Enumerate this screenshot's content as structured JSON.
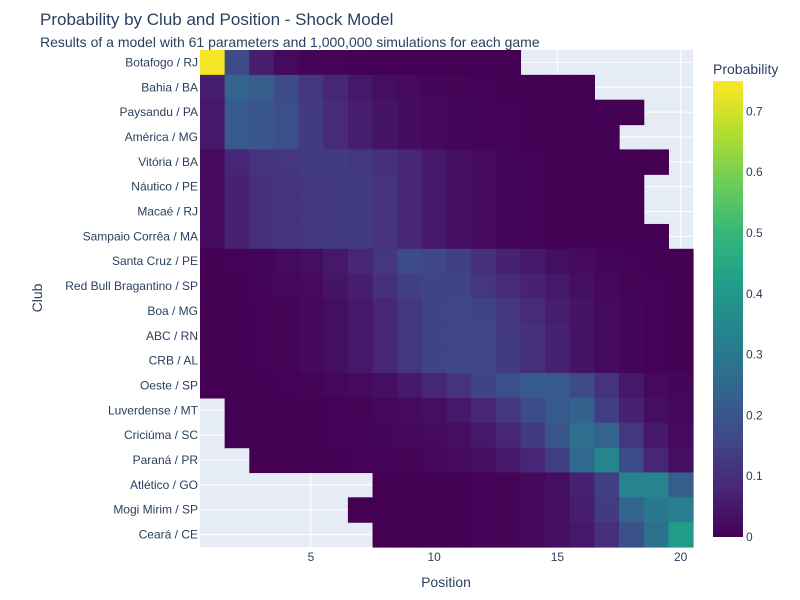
{
  "chart_data": {
    "type": "heatmap",
    "title": "Probability by Club and Position - Shock Model",
    "subtitle": "Results of a model with 61 parameters and 1,000,000 simulations for each game",
    "xlabel": "Position",
    "ylabel": "Club",
    "x_range": [
      0.5,
      20.5
    ],
    "x_ticks": [
      5,
      10,
      15,
      20
    ],
    "colorbar_title": "Probability",
    "colorbar_range": [
      0,
      0.75
    ],
    "colorbar_ticks": [
      0,
      0.1,
      0.2,
      0.3,
      0.4,
      0.5,
      0.6,
      0.7
    ],
    "colorscale": "Viridis",
    "plot_background": "#e5ecf6",
    "clubs": [
      "Botafogo / RJ",
      "Bahia / BA",
      "Paysandu / PA",
      "América / MG",
      "Vitória / BA",
      "Náutico / PE",
      "Macaé / RJ",
      "Sampaio Corrêa / MA",
      "Santa Cruz / PE",
      "Red Bull Bragantino / SP",
      "Boa / MG",
      "ABC / RN",
      "CRB / AL",
      "Oeste / SP",
      "Luverdense / MT",
      "Criciúma / SC",
      "Paraná / PR",
      "Atlético / GO",
      "Mogi Mirim / SP",
      "Ceará / CE"
    ],
    "positions": [
      1,
      2,
      3,
      4,
      5,
      6,
      7,
      8,
      9,
      10,
      11,
      12,
      13,
      14,
      15,
      16,
      17,
      18,
      19,
      20
    ],
    "z": [
      [
        0.74,
        0.17,
        0.06,
        0.02,
        0.008,
        0.004,
        0.002,
        0.001,
        0.001,
        0.001,
        0.001,
        0.001,
        0.001,
        null,
        null,
        null,
        null,
        null,
        null,
        null
      ],
      [
        0.06,
        0.24,
        0.22,
        0.17,
        0.12,
        0.08,
        0.05,
        0.03,
        0.02,
        0.01,
        0.008,
        0.005,
        0.003,
        0.002,
        0.001,
        0.001,
        null,
        null,
        null,
        null
      ],
      [
        0.05,
        0.21,
        0.2,
        0.18,
        0.13,
        0.09,
        0.06,
        0.04,
        0.025,
        0.015,
        0.01,
        0.006,
        0.004,
        0.002,
        0.001,
        0.001,
        0.001,
        0.001,
        null,
        null
      ],
      [
        0.05,
        0.21,
        0.2,
        0.18,
        0.13,
        0.09,
        0.06,
        0.04,
        0.025,
        0.015,
        0.01,
        0.006,
        0.004,
        0.002,
        0.001,
        0.001,
        0.001,
        null,
        null,
        null
      ],
      [
        0.02,
        0.08,
        0.11,
        0.12,
        0.13,
        0.13,
        0.12,
        0.1,
        0.08,
        0.05,
        0.03,
        0.02,
        0.01,
        0.006,
        0.003,
        0.002,
        0.001,
        0.001,
        0.001,
        null
      ],
      [
        0.02,
        0.07,
        0.1,
        0.11,
        0.12,
        0.13,
        0.13,
        0.11,
        0.08,
        0.05,
        0.03,
        0.02,
        0.01,
        0.006,
        0.003,
        0.002,
        0.001,
        0.001,
        null,
        null
      ],
      [
        0.02,
        0.07,
        0.1,
        0.11,
        0.12,
        0.13,
        0.13,
        0.11,
        0.08,
        0.05,
        0.03,
        0.02,
        0.01,
        0.006,
        0.003,
        0.002,
        0.001,
        0.001,
        null,
        null
      ],
      [
        0.02,
        0.07,
        0.1,
        0.11,
        0.12,
        0.13,
        0.13,
        0.11,
        0.08,
        0.05,
        0.03,
        0.02,
        0.01,
        0.006,
        0.003,
        0.002,
        0.001,
        0.001,
        0.001,
        null
      ],
      [
        0.001,
        0.005,
        0.01,
        0.02,
        0.03,
        0.05,
        0.08,
        0.12,
        0.17,
        0.16,
        0.14,
        0.1,
        0.07,
        0.05,
        0.03,
        0.02,
        0.01,
        0.005,
        0.003,
        0.001
      ],
      [
        0.001,
        0.003,
        0.006,
        0.012,
        0.02,
        0.04,
        0.06,
        0.1,
        0.14,
        0.15,
        0.15,
        0.12,
        0.09,
        0.07,
        0.05,
        0.03,
        0.015,
        0.008,
        0.004,
        0.002
      ],
      [
        0.001,
        0.002,
        0.004,
        0.008,
        0.015,
        0.03,
        0.05,
        0.08,
        0.12,
        0.15,
        0.16,
        0.15,
        0.12,
        0.09,
        0.06,
        0.04,
        0.02,
        0.01,
        0.005,
        0.002
      ],
      [
        0.001,
        0.002,
        0.004,
        0.008,
        0.015,
        0.03,
        0.05,
        0.08,
        0.12,
        0.15,
        0.16,
        0.16,
        0.13,
        0.1,
        0.07,
        0.04,
        0.02,
        0.01,
        0.005,
        0.002
      ],
      [
        0.001,
        0.002,
        0.004,
        0.008,
        0.015,
        0.03,
        0.05,
        0.08,
        0.12,
        0.15,
        0.16,
        0.16,
        0.13,
        0.1,
        0.07,
        0.04,
        0.02,
        0.01,
        0.005,
        0.002
      ],
      [
        0.001,
        0.001,
        0.002,
        0.004,
        0.008,
        0.012,
        0.02,
        0.03,
        0.05,
        0.08,
        0.11,
        0.15,
        0.18,
        0.21,
        0.21,
        0.17,
        0.11,
        0.05,
        0.02,
        0.01
      ],
      [
        null,
        0.001,
        0.001,
        0.002,
        0.003,
        0.005,
        0.008,
        0.012,
        0.02,
        0.03,
        0.05,
        0.08,
        0.12,
        0.17,
        0.21,
        0.23,
        0.14,
        0.07,
        0.03,
        0.015
      ],
      [
        null,
        0.001,
        0.001,
        0.002,
        0.003,
        0.004,
        0.006,
        0.01,
        0.015,
        0.02,
        0.03,
        0.05,
        0.08,
        0.13,
        0.2,
        0.27,
        0.24,
        0.12,
        0.05,
        0.02
      ],
      [
        null,
        null,
        0.001,
        0.001,
        0.002,
        0.003,
        0.004,
        0.006,
        0.008,
        0.012,
        0.02,
        0.03,
        0.05,
        0.08,
        0.14,
        0.25,
        0.34,
        0.17,
        0.08,
        0.03
      ],
      [
        null,
        null,
        null,
        null,
        null,
        null,
        null,
        0.001,
        0.001,
        0.002,
        0.003,
        0.005,
        0.008,
        0.015,
        0.03,
        0.07,
        0.14,
        0.34,
        0.34,
        0.22
      ],
      [
        null,
        null,
        null,
        null,
        null,
        null,
        0.001,
        0.001,
        0.001,
        0.002,
        0.003,
        0.005,
        0.008,
        0.015,
        0.03,
        0.06,
        0.13,
        0.24,
        0.3,
        0.32
      ],
      [
        null,
        null,
        null,
        null,
        null,
        null,
        null,
        0.001,
        0.001,
        0.002,
        0.003,
        0.005,
        0.008,
        0.014,
        0.03,
        0.05,
        0.1,
        0.19,
        0.28,
        0.41
      ]
    ]
  }
}
